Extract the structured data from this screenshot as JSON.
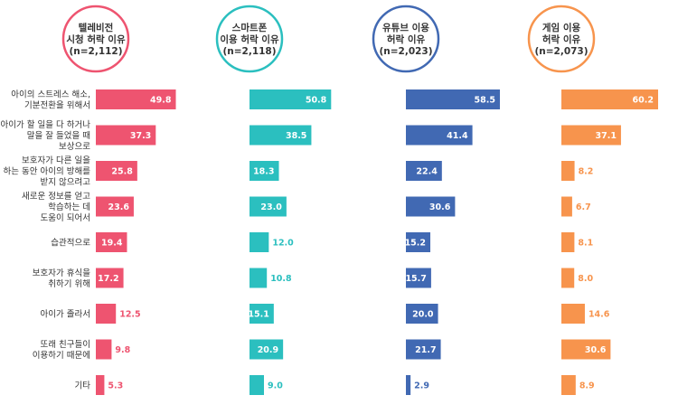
{
  "chart_data": {
    "type": "bar",
    "orientation": "horizontal",
    "categories": [
      [
        "아이의 스트레스 해소,",
        "기분전환을 위해서"
      ],
      [
        "아이가 할 일을 다 하거나",
        "말을 잘 들었을 때",
        "보상으로"
      ],
      [
        "보호자가 다른 일을",
        "하는 동안 아이의 방해를",
        "받지 않으려고"
      ],
      [
        "새로운 정보를 얻고",
        "학습하는 데",
        "도움이 되어서"
      ],
      [
        "습관적으로"
      ],
      [
        "보호자가 휴식을",
        "취하기 위해"
      ],
      [
        "아이가 졸라서"
      ],
      [
        "또래 친구들이",
        "이용하기 때문에"
      ],
      [
        "기타"
      ]
    ],
    "series": [
      {
        "name": [
          "텔레비전",
          "시청 허락 이유",
          "(n=2,112)"
        ],
        "color": "#ee5470",
        "values": [
          49.8,
          37.3,
          25.8,
          23.6,
          19.4,
          17.2,
          12.5,
          9.8,
          5.3
        ]
      },
      {
        "name": [
          "스마트폰",
          "이용 허락 이유",
          "(n=2,118)"
        ],
        "color": "#2bbfbf",
        "values": [
          50.8,
          38.5,
          18.3,
          23.0,
          12.0,
          10.8,
          15.1,
          20.9,
          9.0
        ]
      },
      {
        "name": [
          "유튜브 이용",
          "허락 이유",
          "(n=2,023)"
        ],
        "color": "#4169b3",
        "values": [
          58.5,
          41.4,
          22.4,
          30.6,
          15.2,
          15.7,
          20.0,
          21.7,
          2.9
        ]
      },
      {
        "name": [
          "게임 이용",
          "허락 이유",
          "(n=2,073)"
        ],
        "color": "#f7944d",
        "values": [
          60.2,
          37.1,
          8.2,
          6.7,
          8.1,
          8.0,
          14.6,
          30.6,
          8.9
        ]
      }
    ],
    "xlim": [
      0,
      60.2
    ],
    "value_format": "0.0",
    "grid": false,
    "legend": "none"
  }
}
